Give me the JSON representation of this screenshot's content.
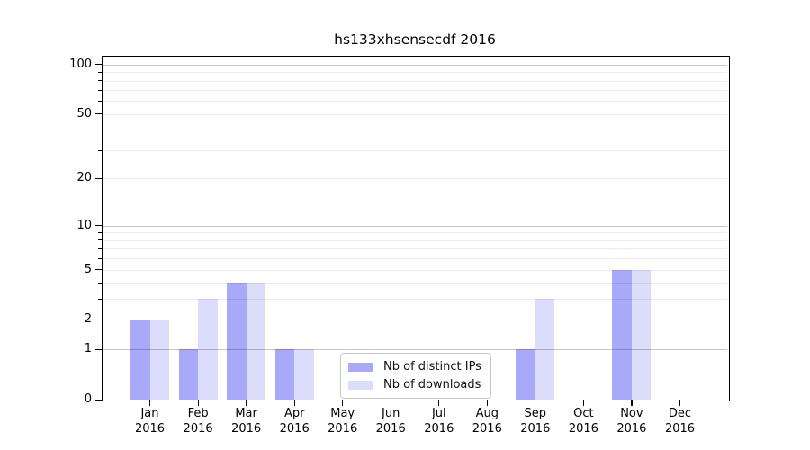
{
  "title": "hs133xhsensecdf 2016",
  "chart_data": {
    "type": "bar",
    "title": "hs133xhsensecdf 2016",
    "categories": [
      "Jan 2016",
      "Feb 2016",
      "Mar 2016",
      "Apr 2016",
      "May 2016",
      "Jun 2016",
      "Jul 2016",
      "Aug 2016",
      "Sep 2016",
      "Oct 2016",
      "Nov 2016",
      "Dec 2016"
    ],
    "x_tick_months": [
      "Jan",
      "Feb",
      "Mar",
      "Apr",
      "May",
      "Jun",
      "Jul",
      "Aug",
      "Sep",
      "Oct",
      "Nov",
      "Dec"
    ],
    "x_tick_year": "2016",
    "series": [
      {
        "name": "Nb of distinct IPs",
        "color": "#a9a9fa",
        "values": [
          2,
          1,
          4,
          1,
          0,
          0,
          0,
          0,
          1,
          0,
          5,
          0
        ]
      },
      {
        "name": "Nb of downloads",
        "color": "#dcdcfb",
        "values": [
          2,
          3,
          4,
          1,
          0,
          0,
          0,
          0,
          3,
          0,
          5,
          0
        ]
      }
    ],
    "xlabel": "",
    "ylabel": "",
    "yscale": "symlog-log1p",
    "ylim": [
      0,
      113
    ],
    "yticks": [
      0,
      1,
      2,
      5,
      10,
      20,
      50,
      100
    ],
    "major_grid_values": [
      1,
      10,
      100
    ],
    "minor_grid_values": [
      2,
      3,
      4,
      5,
      6,
      7,
      8,
      9,
      20,
      30,
      40,
      50,
      60,
      70,
      80,
      90
    ],
    "grid": true,
    "legend_position": "lower center"
  },
  "colors": {
    "background": "#ffffff",
    "bar_distinct_ips": "#a9a9fa",
    "bar_downloads": "#dcdcfb",
    "grid_major": "rgba(0,0,0,0.22)",
    "grid_minor": "rgba(0,0,0,0.08)",
    "spine": "#000000",
    "text": "#000000"
  }
}
